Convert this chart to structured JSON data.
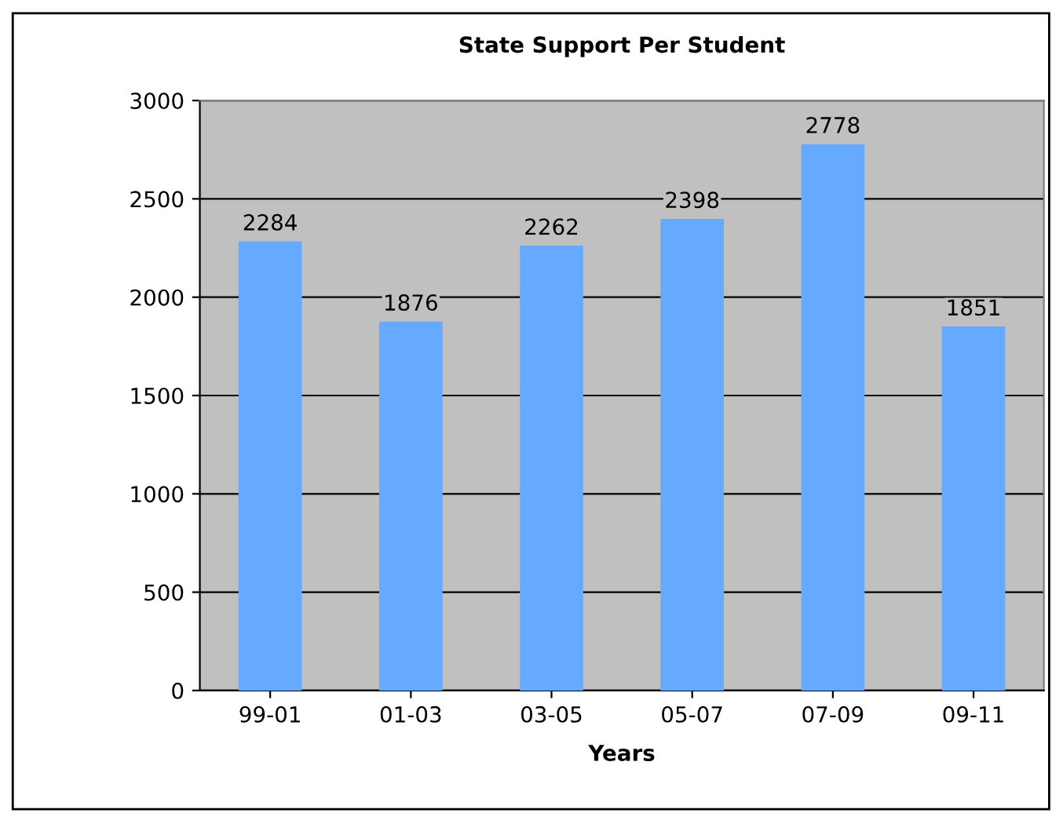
{
  "chart_data": {
    "type": "bar",
    "title": "State Support Per Student",
    "xlabel": "Years",
    "categories": [
      "99-01",
      "01-03",
      "03-05",
      "05-07",
      "07-09",
      "09-11"
    ],
    "values": [
      2284,
      1876,
      2262,
      2398,
      2778,
      1851
    ],
    "color": "#66aaff",
    "ylim": [
      0,
      3000
    ],
    "yticks": [
      0,
      500,
      1000,
      1500,
      2000,
      2500,
      3000
    ],
    "grid": "y",
    "data_labels": true,
    "legend": false
  }
}
